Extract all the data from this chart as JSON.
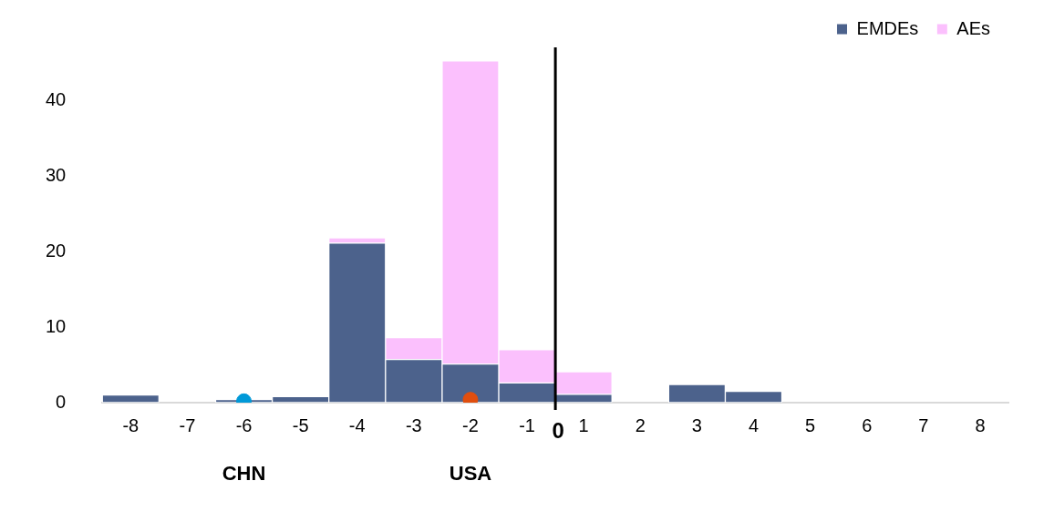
{
  "chart_data": {
    "type": "bar",
    "stacked": true,
    "legend": "top right",
    "categories": [
      "-8",
      "-7",
      "-6",
      "-5",
      "-4",
      "-3",
      "-2",
      "-1",
      "1",
      "2",
      "3",
      "4",
      "5",
      "6",
      "7",
      "8"
    ],
    "series": [
      {
        "name": "EMDEs",
        "color": "#4c628c",
        "values": [
          1.0,
          0,
          0.4,
          0.8,
          21.1,
          5.7,
          5.1,
          2.6,
          1.1,
          0,
          2.4,
          1.5,
          0,
          0,
          0,
          0
        ]
      },
      {
        "name": "AEs",
        "color": "#fbc0fd",
        "values": [
          0,
          0,
          0,
          0,
          0.7,
          2.9,
          40.1,
          4.4,
          3.0,
          0,
          0,
          0,
          0,
          0,
          0,
          0
        ]
      },
      {
        "type": "scatter",
        "name": "CHN",
        "color": "#0099d8",
        "x": [
          "-6"
        ],
        "values": [
          0.2
        ]
      },
      {
        "type": "scatter",
        "name": "USA",
        "color": "#e04e0e",
        "x": [
          "-2"
        ],
        "values": [
          0.4
        ]
      }
    ],
    "ylim": [
      0,
      47
    ],
    "yticks": [
      0,
      10,
      20,
      30,
      40
    ],
    "annotations": [
      "0"
    ]
  }
}
